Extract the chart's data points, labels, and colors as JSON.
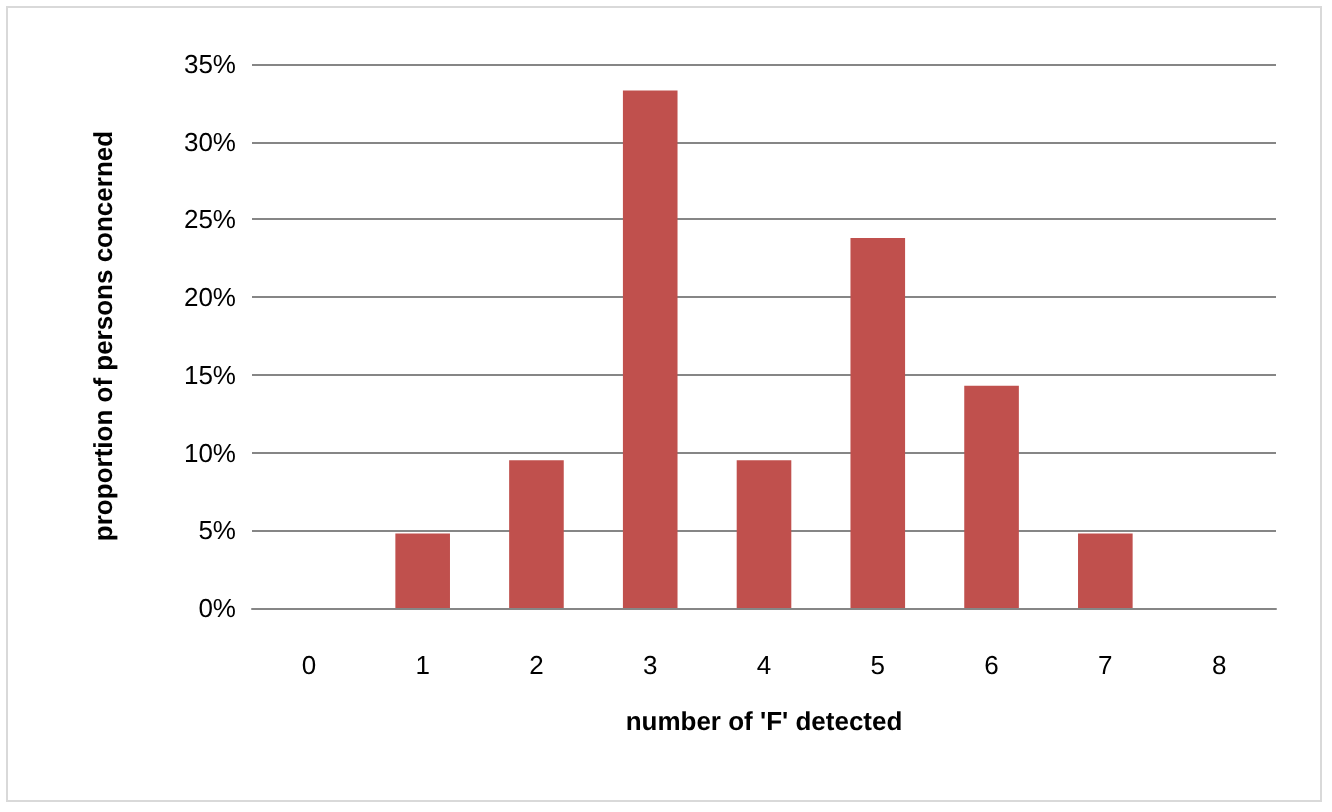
{
  "chart_data": {
    "type": "bar",
    "xlabel": "number of 'F' detected",
    "ylabel": "proportion of persons concerned",
    "categories": [
      "0",
      "1",
      "2",
      "3",
      "4",
      "5",
      "6",
      "7",
      "8"
    ],
    "values": [
      0,
      4.8,
      9.5,
      33.3,
      9.5,
      23.8,
      14.3,
      4.8,
      0
    ],
    "color": "#c0504d",
    "ylim": [
      0,
      35
    ],
    "yticks": [
      {
        "value": 0,
        "label": "0%"
      },
      {
        "value": 5,
        "label": "5%"
      },
      {
        "value": 10,
        "label": "10%"
      },
      {
        "value": 15,
        "label": "15%"
      },
      {
        "value": 20,
        "label": "20%"
      },
      {
        "value": 25,
        "label": "25%"
      },
      {
        "value": 30,
        "label": "30%"
      },
      {
        "value": 35,
        "label": "35%"
      }
    ],
    "grid": "y"
  }
}
